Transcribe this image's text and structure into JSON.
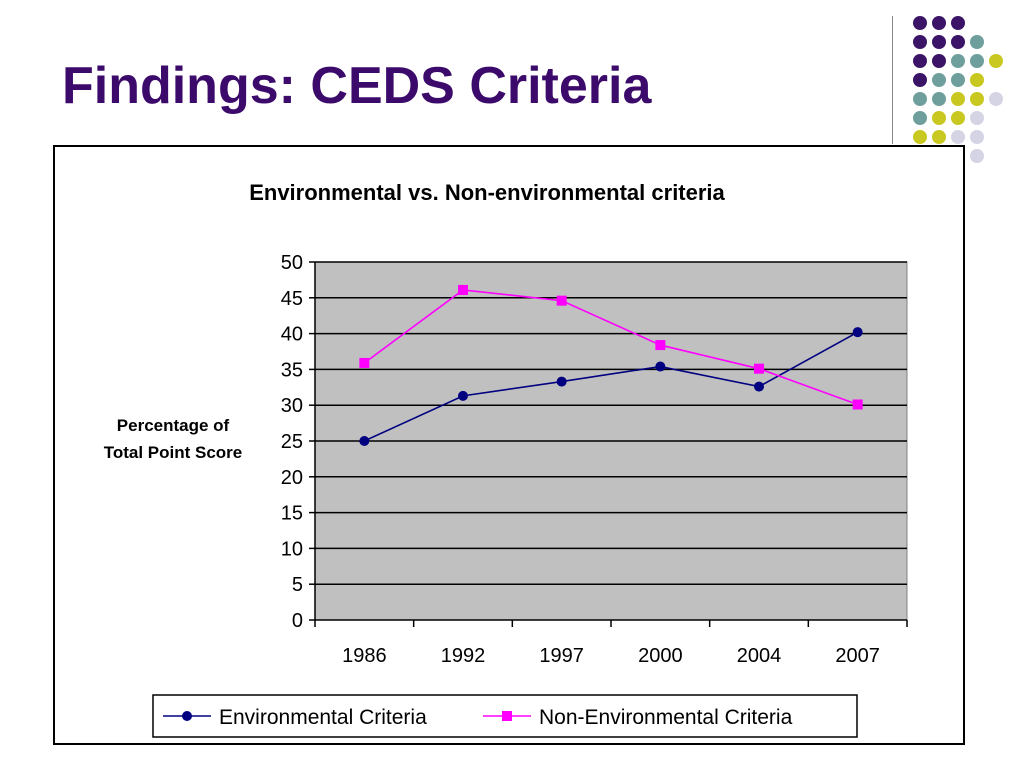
{
  "slide": {
    "title": "Findings: CEDS Criteria"
  },
  "decor": {
    "dot_colors": {
      "purple": "#3b1467",
      "teal": "#6f9f9c",
      "yellow": "#c9c820",
      "lavender": "#d4d4e4"
    }
  },
  "chart_data": {
    "type": "line",
    "title": "Environmental vs. Non-environmental criteria",
    "xlabel": "",
    "ylabel_lines": [
      "Percentage of",
      "Total Point Score"
    ],
    "categories": [
      "1986",
      "1992",
      "1997",
      "2000",
      "2004",
      "2007"
    ],
    "ylim": [
      0,
      50
    ],
    "yticks": [
      0,
      5,
      10,
      15,
      20,
      25,
      30,
      35,
      40,
      45,
      50
    ],
    "grid": true,
    "plot_background": "#c0c0c0",
    "legend_position": "bottom",
    "series": [
      {
        "name": "Environmental Criteria",
        "values": [
          25.0,
          31.3,
          33.3,
          35.4,
          32.6,
          40.2
        ],
        "color": "#000080",
        "marker": "circle"
      },
      {
        "name": "Non-Environmental Criteria",
        "values": [
          35.9,
          46.1,
          44.6,
          38.4,
          35.1,
          30.1
        ],
        "color": "#ff00ff",
        "marker": "square"
      }
    ]
  }
}
